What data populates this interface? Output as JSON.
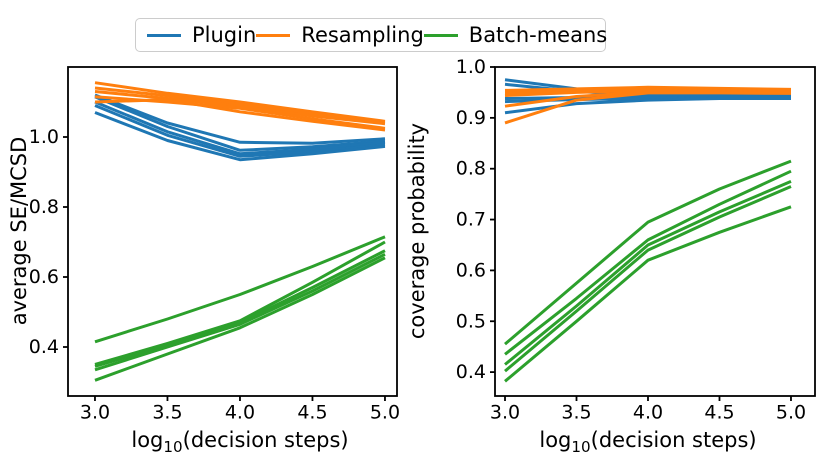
{
  "figure": {
    "background": "#ffffff"
  },
  "legend": {
    "position": "upper center, outside axes",
    "items": [
      {
        "label": "Plugin",
        "color": "#1f77b4"
      },
      {
        "label": "Resampling",
        "color": "#ff7f0e"
      },
      {
        "label": "Batch-means",
        "color": "#2ca02c"
      }
    ]
  },
  "chart_data": [
    {
      "type": "line",
      "title": "",
      "xlabel": "log10(decision steps)",
      "xlabel_parts": {
        "pre": "log",
        "sub": "10",
        "post": "(decision steps)"
      },
      "ylabel": "average SE/MCSD",
      "x": [
        3.0,
        3.5,
        4.0,
        4.5,
        5.0
      ],
      "x_tick_values": [
        3.0,
        3.5,
        4.0,
        4.5,
        5.0
      ],
      "x_tick_labels": [
        "3.0",
        "3.5",
        "4.0",
        "4.5",
        "5.0"
      ],
      "y_tick_values": [
        0.4,
        0.6,
        0.8,
        1.0
      ],
      "y_tick_labels": [
        "0.4",
        "0.6",
        "0.8",
        "1.0"
      ],
      "xlim": [
        2.814,
        5.083
      ],
      "ylim": [
        0.26,
        1.2
      ],
      "grid": false,
      "series": [
        {
          "name": "Plugin",
          "color": "#1f77b4",
          "lines": [
            [
              1.12,
              1.04,
              0.985,
              0.982,
              0.995
            ],
            [
              1.115,
              1.03,
              0.962,
              0.972,
              0.988
            ],
            [
              1.1,
              1.015,
              0.952,
              0.965,
              0.984
            ],
            [
              1.09,
              1.005,
              0.945,
              0.958,
              0.978
            ],
            [
              1.07,
              0.99,
              0.935,
              0.952,
              0.973
            ]
          ]
        },
        {
          "name": "Resampling",
          "color": "#ff7f0e",
          "lines": [
            [
              1.155,
              1.125,
              1.1,
              1.072,
              1.045
            ],
            [
              1.14,
              1.118,
              1.093,
              1.066,
              1.042
            ],
            [
              1.13,
              1.11,
              1.088,
              1.06,
              1.038
            ],
            [
              1.115,
              1.1,
              1.082,
              1.052,
              1.025
            ],
            [
              1.1,
              1.107,
              1.072,
              1.045,
              1.02
            ]
          ]
        },
        {
          "name": "Batch-means",
          "color": "#2ca02c",
          "lines": [
            [
              0.415,
              0.48,
              0.55,
              0.63,
              0.715
            ],
            [
              0.35,
              0.41,
              0.475,
              0.585,
              0.7
            ],
            [
              0.345,
              0.405,
              0.47,
              0.57,
              0.675
            ],
            [
              0.335,
              0.4,
              0.465,
              0.56,
              0.665
            ],
            [
              0.305,
              0.38,
              0.455,
              0.55,
              0.655
            ]
          ]
        }
      ]
    },
    {
      "type": "line",
      "title": "",
      "xlabel": "log10(decision steps)",
      "xlabel_parts": {
        "pre": "log",
        "sub": "10",
        "post": "(decision steps)"
      },
      "ylabel": "coverage probability",
      "x": [
        3.0,
        3.5,
        4.0,
        4.5,
        5.0
      ],
      "x_tick_values": [
        3.0,
        3.5,
        4.0,
        4.5,
        5.0
      ],
      "x_tick_labels": [
        "3.0",
        "3.5",
        "4.0",
        "4.5",
        "5.0"
      ],
      "y_tick_values": [
        0.4,
        0.5,
        0.6,
        0.7,
        0.8,
        0.9,
        1.0
      ],
      "y_tick_labels": [
        "0.4",
        "0.5",
        "0.6",
        "0.7",
        "0.8",
        "0.9",
        "1.0"
      ],
      "xlim": [
        2.93,
        5.168
      ],
      "ylim": [
        0.353,
        1.0
      ],
      "grid": false,
      "series": [
        {
          "name": "Plugin",
          "color": "#1f77b4",
          "lines": [
            [
              0.975,
              0.957,
              0.947,
              0.946,
              0.945
            ],
            [
              0.966,
              0.952,
              0.944,
              0.944,
              0.943
            ],
            [
              0.938,
              0.94,
              0.942,
              0.942,
              0.941
            ],
            [
              0.932,
              0.936,
              0.938,
              0.94,
              0.94
            ],
            [
              0.91,
              0.928,
              0.935,
              0.938,
              0.938
            ]
          ]
        },
        {
          "name": "Resampling",
          "color": "#ff7f0e",
          "lines": [
            [
              0.954,
              0.957,
              0.96,
              0.958,
              0.956
            ],
            [
              0.949,
              0.953,
              0.957,
              0.955,
              0.954
            ],
            [
              0.944,
              0.95,
              0.954,
              0.953,
              0.952
            ],
            [
              0.923,
              0.942,
              0.951,
              0.951,
              0.95
            ],
            [
              0.89,
              0.935,
              0.949,
              0.949,
              0.948
            ]
          ]
        },
        {
          "name": "Batch-means",
          "color": "#2ca02c",
          "lines": [
            [
              0.455,
              0.575,
              0.695,
              0.76,
              0.815
            ],
            [
              0.435,
              0.545,
              0.66,
              0.73,
              0.795
            ],
            [
              0.415,
              0.53,
              0.65,
              0.715,
              0.775
            ],
            [
              0.402,
              0.52,
              0.64,
              0.705,
              0.765
            ],
            [
              0.382,
              0.5,
              0.62,
              0.675,
              0.725
            ]
          ]
        }
      ]
    }
  ]
}
